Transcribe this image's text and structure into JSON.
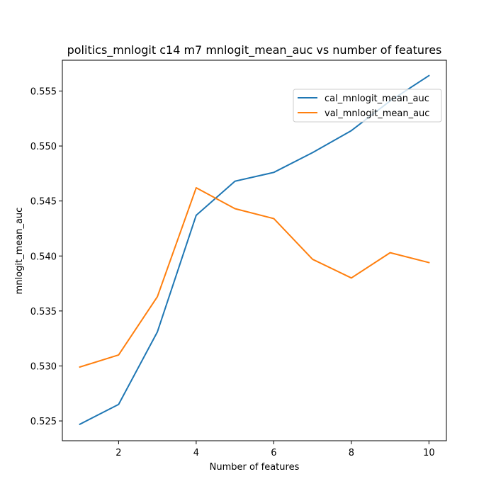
{
  "chart_data": {
    "type": "line",
    "title": "politics_mnlogit c14 m7 mnlogit_mean_auc vs number of features",
    "xlabel": "Number of features",
    "ylabel": "mnlogit_mean_auc",
    "xlim": [
      0.55,
      10.45
    ],
    "ylim": [
      0.5232,
      0.5578
    ],
    "xticks": [
      2,
      4,
      6,
      8,
      10
    ],
    "yticks": [
      0.525,
      0.53,
      0.535,
      0.54,
      0.545,
      0.55,
      0.555
    ],
    "ytick_labels": [
      "0.525",
      "0.530",
      "0.535",
      "0.540",
      "0.545",
      "0.550",
      "0.555"
    ],
    "grid": false,
    "legend_position": "upper-right",
    "x": [
      1,
      2,
      3,
      4,
      5,
      6,
      7,
      8,
      9,
      10
    ],
    "series": [
      {
        "name": "cal_mnlogit_mean_auc",
        "color": "#1f77b4",
        "values": [
          0.5247,
          0.5265,
          0.5331,
          0.5437,
          0.5468,
          0.5476,
          0.5494,
          0.5514,
          0.5541,
          0.5564
        ]
      },
      {
        "name": "val_mnlogit_mean_auc",
        "color": "#ff7f0e",
        "values": [
          0.5299,
          0.531,
          0.5363,
          0.5462,
          0.5443,
          0.5434,
          0.5397,
          0.538,
          0.5403,
          0.5394
        ]
      }
    ]
  }
}
